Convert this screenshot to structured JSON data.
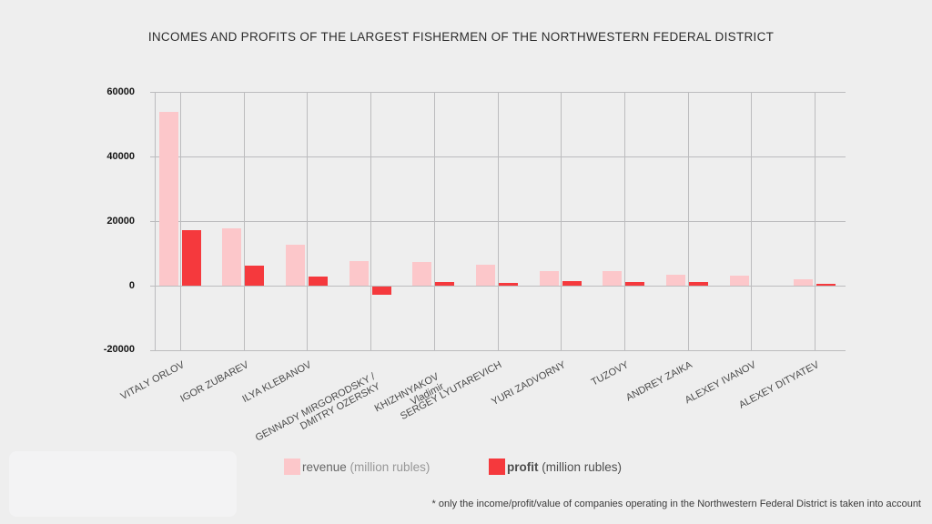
{
  "title": "INCOMES AND PROFITS OF THE LARGEST FISHERMEN OF THE NORTHWESTERN FEDERAL DISTRICT",
  "footnote": "* only the income/profit/value of companies operating in the Northwestern Federal District is taken into account",
  "legend": {
    "revenue_name": "revenue",
    "revenue_unit": " (million rubles)",
    "profit_name": "profit",
    "profit_unit": " (million rubles)"
  },
  "colors": {
    "revenue": "#fcc7ca",
    "profit": "#f5393d",
    "grid": "#bcbcbe",
    "background": "#eeeeee"
  },
  "y_axis": {
    "tick_labels": [
      "60000",
      "40000",
      "20000",
      "0",
      "-20000"
    ]
  },
  "x_axis": {
    "label_lines": [
      [
        "VITALY ORLOV"
      ],
      [
        "IGOR ZUBAREV"
      ],
      [
        "ILYA KLEBANOV"
      ],
      [
        "GENNADY MIRGORODSKY /",
        "DMITRY OZERSKY"
      ],
      [
        "KHIZHNYAKOV",
        "Vladimir"
      ],
      [
        "SERGEY LYUTAREVICH"
      ],
      [
        "YURI ZADVORNY"
      ],
      [
        "TUZOVY"
      ],
      [
        "ANDREY ZAIKA"
      ],
      [
        "ALEXEY IVANOV"
      ],
      [
        "ALEXEY DITYATEV"
      ]
    ]
  },
  "chart_data": {
    "type": "bar",
    "title": "INCOMES AND PROFITS OF THE LARGEST FISHERMEN OF THE NORTHWESTERN FEDERAL DISTRICT",
    "categories": [
      "VITALY ORLOV",
      "IGOR ZUBAREV",
      "ILYA KLEBANOV",
      "GENNADY MIRGORODSKY / DMITRY OZERSKY",
      "KHIZHNYAKOV Vladimir",
      "SERGEY LYUTAREVICH",
      "YURI ZADVORNY",
      "TUZOVY",
      "ANDREY ZAIKA",
      "ALEXEY IVANOV",
      "ALEXEY DITYATEV"
    ],
    "series": [
      {
        "name": "revenue (million rubles)",
        "color": "#fcc7ca",
        "values": [
          54000,
          17700,
          12600,
          7700,
          7300,
          6400,
          4600,
          4500,
          3400,
          3200,
          2100
        ]
      },
      {
        "name": "profit (million rubles)",
        "color": "#f5393d",
        "values": [
          17200,
          6100,
          2700,
          -2500,
          1200,
          900,
          1300,
          1100,
          1200,
          0,
          500
        ]
      }
    ],
    "ylabel": "",
    "xlabel": "",
    "ylim": [
      -20000,
      60000
    ],
    "y_ticks": [
      60000,
      40000,
      20000,
      0,
      -20000
    ],
    "grid": true,
    "legend_position": "bottom",
    "x_label_rotation_deg": -28,
    "footnote": "* only the income/profit/value of companies operating in the Northwestern Federal District is taken into account"
  }
}
